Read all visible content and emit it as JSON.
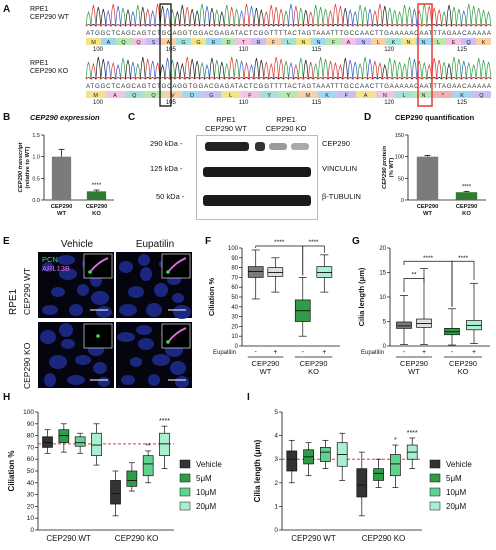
{
  "panels": {
    "A": "A",
    "B": "B",
    "C": "C",
    "D": "D",
    "E": "E",
    "F": "F",
    "G": "G",
    "H": "H",
    "I": "I"
  },
  "panel_a": {
    "wt_line1": "RPE1",
    "wt_line2": "CEP290 WT",
    "ko_line1": "RPE1",
    "ko_line2": "CEP290 KO",
    "seq_wt": "ATGGCTCAGCAGTCTGCAGGTGGACGAGATACTCGGTTTTACTAGTAAATTTGCCAACTTGAAAAACAATTTAGAACAAAAA",
    "seq_ko": "ATGGCTCAGCAGTCTGCAGGTGGACGAGATACTCGGTTTTACTAGTAAATTTGCCAACTTGAAAAACAATTTAGAACAAAAA",
    "aa_wt": [
      "M",
      "A",
      "Q",
      "Q",
      "S",
      "A",
      "G",
      "G",
      "R",
      "D",
      "T",
      "R",
      "F",
      "L",
      "N",
      "N",
      "F",
      "A",
      "N",
      "L",
      "K",
      "N",
      "N",
      "L",
      "E",
      "Q",
      "K"
    ],
    "aa_ko": [
      "M",
      "A",
      "Q",
      "Q",
      "V",
      "D",
      "G",
      "L",
      "F",
      "Y",
      "Y",
      "M",
      "K",
      "F",
      "A",
      "N",
      "L",
      "N",
      "*",
      "K",
      "Q"
    ],
    "wt_ticks": [
      "100",
      "105",
      "110",
      "115",
      "120",
      "125"
    ],
    "ko_ticks": [
      "100",
      "105",
      "110",
      "115",
      "120",
      "125"
    ]
  },
  "panel_b": {
    "title": "CEP290 expression",
    "ylabel1": "CEP290 transcript",
    "ylabel2": "(relative to WT)",
    "sig": "****",
    "chart_data": {
      "type": "bar",
      "categories": [
        "CEP290 WT",
        "CEP290 KO"
      ],
      "values": [
        1.0,
        0.2
      ],
      "errors": [
        0.17,
        0.03
      ],
      "ylim": [
        0,
        1.5
      ],
      "yticks": [
        "0.0",
        "0.5",
        "1.0",
        "1.5"
      ],
      "colors": [
        "#7b7b7b",
        "#2e7d32"
      ]
    }
  },
  "panel_c": {
    "col1_line1": "RPE1",
    "col1_line2": "CEP290 WT",
    "col2_line1": "RPE1",
    "col2_line2": "CEP290 KO",
    "rows": [
      {
        "kda": "290 kDa -",
        "protein": "CEP290"
      },
      {
        "kda": "125 kDa -",
        "protein": "VINCULIN"
      },
      {
        "kda": "50 kDa -",
        "protein": "β-TUBULIN"
      }
    ]
  },
  "panel_d": {
    "title": "CEP290 quantification",
    "ylabel1": "CEP290 protein",
    "ylabel2": "(% WT)",
    "sig": "****",
    "chart_data": {
      "type": "bar",
      "categories": [
        "CEP290 WT",
        "CEP290 KO"
      ],
      "values": [
        100,
        18
      ],
      "errors": [
        3,
        2
      ],
      "ylim": [
        0,
        150
      ],
      "yticks": [
        "0",
        "50",
        "100",
        "150"
      ],
      "colors": [
        "#7b7b7b",
        "#2e7d32"
      ]
    }
  },
  "panel_e": {
    "col1": "Vehicle",
    "col2": "Eupatilin",
    "side": "RPE1",
    "row1": "CEP290 WT",
    "row2": "CEP290 KO",
    "legend_pcn": "PCN",
    "legend_arl": "ARL13B"
  },
  "panel_f": {
    "ylabel": "Ciliation %",
    "treatment_label": "Eupatilin",
    "signs": [
      "-",
      "+",
      "-",
      "+"
    ],
    "group1_line1": "CEP290",
    "group1_line2": "WT",
    "group2_line1": "CEP290",
    "group2_line2": "KO",
    "sig1": "****",
    "sig2": "****",
    "chart_data": {
      "type": "box",
      "ylim": [
        0,
        100
      ],
      "yticks": [
        "0",
        "10",
        "20",
        "30",
        "40",
        "50",
        "60",
        "70",
        "80",
        "90",
        "100"
      ],
      "boxes": [
        {
          "min": 48,
          "q1": 70,
          "median": 76,
          "q3": 81,
          "max": 98,
          "color": "#7b7b7b"
        },
        {
          "min": 55,
          "q1": 71,
          "median": 75,
          "q3": 80,
          "max": 90,
          "color": "#e0e0e0"
        },
        {
          "min": 10,
          "q1": 25,
          "median": 36,
          "q3": 47,
          "max": 70,
          "color": "#2e9d47"
        },
        {
          "min": 55,
          "q1": 70,
          "median": 75,
          "q3": 81,
          "max": 93,
          "color": "#a8f0d0"
        }
      ]
    }
  },
  "panel_g": {
    "ylabel": "Cilia length (μm)",
    "treatment_label": "Eupatilin",
    "signs": [
      "-",
      "+",
      "-",
      "+"
    ],
    "group1_line1": "CEP290",
    "group1_line2": "WT",
    "group2_line1": "CEP290",
    "group2_line2": "KO",
    "sig_a": "**",
    "sig_b": "****",
    "sig_c": "****",
    "chart_data": {
      "type": "box",
      "ylim": [
        0,
        20
      ],
      "yticks": [
        "0",
        "5",
        "10",
        "15",
        "20"
      ],
      "boxes": [
        {
          "min": 0.3,
          "q1": 3.6,
          "median": 4.1,
          "q3": 4.9,
          "max": 10.3,
          "color": "#7b7b7b"
        },
        {
          "min": 0.3,
          "q1": 3.8,
          "median": 4.6,
          "q3": 5.5,
          "max": 15.8,
          "color": "#e0e0e0"
        },
        {
          "min": 0.2,
          "q1": 2.3,
          "median": 2.9,
          "q3": 3.6,
          "max": 7.6,
          "color": "#2e9d47"
        },
        {
          "min": 0.5,
          "q1": 3.3,
          "median": 4.2,
          "q3": 5.2,
          "max": 12.8,
          "color": "#a8f0d0"
        }
      ]
    }
  },
  "panel_h": {
    "ylabel": "Ciliation %",
    "xlabels": [
      "CEP290 WT",
      "CEP290 KO"
    ],
    "sigs": [
      "**",
      "****"
    ],
    "legend": [
      "Vehicle",
      "5μM",
      "10μM",
      "20μM"
    ],
    "chart_data": {
      "type": "box",
      "ylim": [
        0,
        100
      ],
      "yticks": [
        "0",
        "10",
        "20",
        "30",
        "40",
        "50",
        "60",
        "70",
        "80",
        "90",
        "100"
      ],
      "reference_line": 73,
      "groups": [
        [
          {
            "min": 65,
            "q1": 70,
            "median": 74,
            "q3": 79,
            "max": 85
          },
          {
            "min": 66,
            "q1": 74,
            "median": 80,
            "q3": 85,
            "max": 90
          },
          {
            "min": 65,
            "q1": 71,
            "median": 74,
            "q3": 79,
            "max": 82
          },
          {
            "min": 55,
            "q1": 63,
            "median": 72,
            "q3": 82,
            "max": 90
          }
        ],
        [
          {
            "min": 12,
            "q1": 22,
            "median": 31,
            "q3": 42,
            "max": 50
          },
          {
            "min": 33,
            "q1": 37,
            "median": 42,
            "q3": 50,
            "max": 57
          },
          {
            "min": 40,
            "q1": 46,
            "median": 56,
            "q3": 63,
            "max": 67
          },
          {
            "min": 52,
            "q1": 63,
            "median": 73,
            "q3": 82,
            "max": 88
          }
        ]
      ],
      "colors": [
        "#333333",
        "#2e9d47",
        "#5fd38f",
        "#a8f0d0"
      ]
    }
  },
  "panel_i": {
    "ylabel": "Cilia length (μm)",
    "xlabels": [
      "CEP290 WT",
      "CEP290 KO"
    ],
    "sigs": [
      "*",
      "****"
    ],
    "legend": [
      "Vehicle",
      "5μM",
      "10μM",
      "20μM"
    ],
    "chart_data": {
      "type": "box",
      "ylim": [
        0,
        5
      ],
      "yticks": [
        "0",
        "1",
        "2",
        "3",
        "4",
        "5"
      ],
      "reference_line": 3.0,
      "groups": [
        [
          {
            "min": 2.0,
            "q1": 2.5,
            "median": 3.0,
            "q3": 3.35,
            "max": 3.8
          },
          {
            "min": 2.3,
            "q1": 2.8,
            "median": 3.1,
            "q3": 3.4,
            "max": 3.7
          },
          {
            "min": 2.6,
            "q1": 2.9,
            "median": 3.3,
            "q3": 3.5,
            "max": 3.8
          },
          {
            "min": 2.1,
            "q1": 2.7,
            "median": 3.2,
            "q3": 3.7,
            "max": 4.1
          }
        ],
        [
          {
            "min": 0.6,
            "q1": 1.4,
            "median": 1.9,
            "q3": 2.6,
            "max": 3.3
          },
          {
            "min": 1.8,
            "q1": 2.1,
            "median": 2.4,
            "q3": 2.6,
            "max": 3.0
          },
          {
            "min": 1.8,
            "q1": 2.3,
            "median": 2.8,
            "q3": 3.2,
            "max": 3.6
          },
          {
            "min": 2.6,
            "q1": 3.0,
            "median": 3.3,
            "q3": 3.6,
            "max": 3.9
          }
        ]
      ],
      "colors": [
        "#333333",
        "#2e9d47",
        "#5fd38f",
        "#a8f0d0"
      ]
    }
  }
}
